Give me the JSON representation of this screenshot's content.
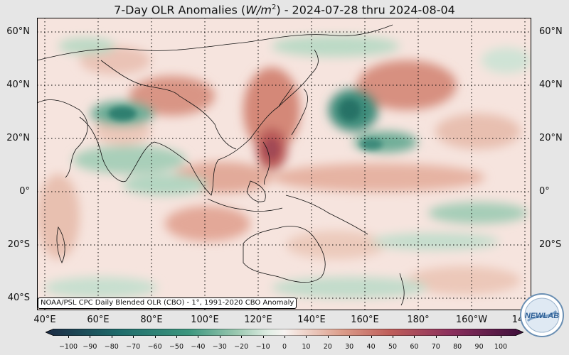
{
  "title": "7-Day OLR Anomalies (W/m²) - 2024-07-28 thru 2024-08-04",
  "title_parts": {
    "pre": "7-Day OLR Anomalies (",
    "unit_base": "W/m",
    "unit_exp": "2",
    "post": ") - 2024-07-28 thru 2024-08-04"
  },
  "latitude_labels": [
    "60°N",
    "40°N",
    "20°N",
    "0°",
    "20°S",
    "40°S"
  ],
  "longitude_labels": [
    "40°E",
    "60°E",
    "80°E",
    "100°E",
    "120°E",
    "140°E",
    "160°E",
    "180°",
    "160°W",
    "14"
  ],
  "credit": "NOAA/PSL CPC Daily Blended OLR (CBO) - 1°, 1991-2020 CBO Anomaly",
  "colorbar": {
    "ticks": [
      "−100",
      "−90",
      "−80",
      "−70",
      "−60",
      "−50",
      "−40",
      "−30",
      "−20",
      "−10",
      "0",
      "10",
      "20",
      "30",
      "40",
      "50",
      "60",
      "70",
      "80",
      "90",
      "100"
    ],
    "range": [
      -100,
      100
    ],
    "colors": {
      "negative_end": "#1b2a44",
      "negative_mid": "#1e7a6a",
      "neutral": "#f7f3f1",
      "positive_mid": "#c06050",
      "positive_end": "#3c0e3a"
    }
  },
  "logo_text": "NEWLAB",
  "map": {
    "lon_range_deg_east": [
      37,
      222
    ],
    "lat_range": [
      -42,
      65
    ],
    "grid": true,
    "features": [
      "coastlines",
      "country-borders",
      "dotted-graticule"
    ]
  }
}
